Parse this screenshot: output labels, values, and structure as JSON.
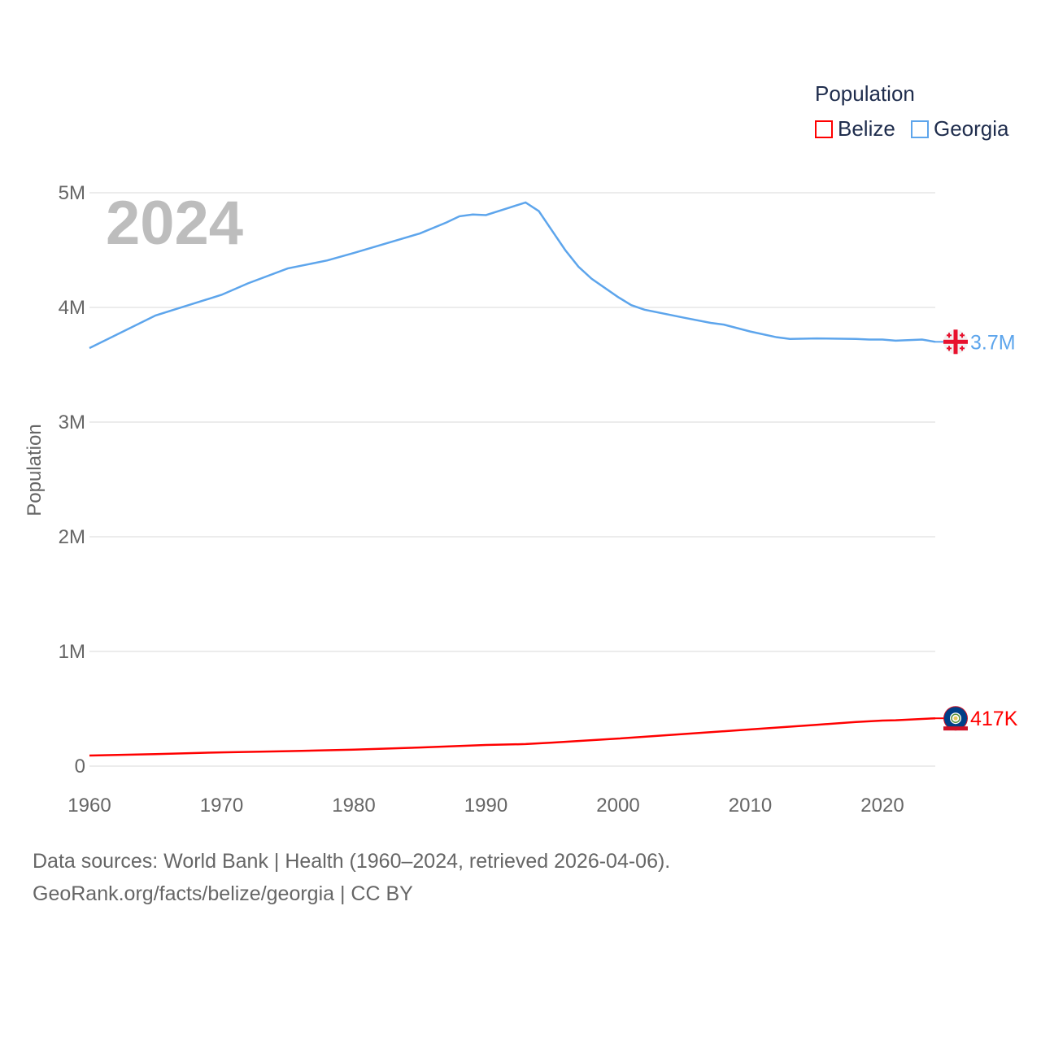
{
  "chart_data": {
    "type": "line",
    "title": "",
    "ylabel": "Population",
    "xlabel": "",
    "year_overlay": "2024",
    "legend_title": "Population",
    "legend_position": "top-right",
    "xlim": [
      1960,
      2024
    ],
    "ylim": [
      0,
      5000000
    ],
    "x_ticks": [
      1960,
      1970,
      1980,
      1990,
      2000,
      2010,
      2020
    ],
    "x_tick_labels": [
      "1960",
      "1970",
      "1980",
      "1990",
      "2000",
      "2010",
      "2020"
    ],
    "y_ticks": [
      0,
      1000000,
      2000000,
      3000000,
      4000000,
      5000000
    ],
    "y_tick_labels": [
      "0",
      "1M",
      "2M",
      "3M",
      "4M",
      "5M"
    ],
    "grid": true,
    "series": [
      {
        "name": "Belize",
        "color": "#ff0000",
        "end_label": "417K",
        "flag": "belize-flag",
        "x": [
          1960,
          1965,
          1970,
          1975,
          1980,
          1985,
          1990,
          1993,
          1995,
          2000,
          2005,
          2010,
          2015,
          2018,
          2020,
          2021,
          2024
        ],
        "values": [
          92000,
          105000,
          120000,
          130000,
          144000,
          162000,
          184000,
          192000,
          205000,
          240000,
          280000,
          320000,
          360000,
          385000,
          397000,
          400000,
          417000
        ]
      },
      {
        "name": "Georgia",
        "color": "#5da5ec",
        "end_label": "3.7M",
        "flag": "georgia-flag",
        "x": [
          1960,
          1965,
          1970,
          1972,
          1975,
          1978,
          1980,
          1985,
          1987,
          1988,
          1989,
          1990,
          1993,
          1994,
          1995,
          1996,
          1997,
          1998,
          2000,
          2001,
          2002,
          2005,
          2007,
          2008,
          2010,
          2012,
          2013,
          2015,
          2018,
          2019,
          2020,
          2021,
          2023,
          2024
        ],
        "values": [
          3645000,
          3930000,
          4110000,
          4210000,
          4340000,
          4410000,
          4475000,
          4645000,
          4740000,
          4795000,
          4810000,
          4805000,
          4915000,
          4840000,
          4670000,
          4500000,
          4355000,
          4250000,
          4090000,
          4020000,
          3980000,
          3910000,
          3865000,
          3850000,
          3790000,
          3740000,
          3725000,
          3730000,
          3725000,
          3720000,
          3720000,
          3710000,
          3720000,
          3700000
        ]
      }
    ]
  },
  "footer": {
    "line1": "Data sources: World Bank | Health (1960–2024, retrieved 2026-04-06).",
    "line2": "GeoRank.org/facts/belize/georgia | CC BY"
  }
}
